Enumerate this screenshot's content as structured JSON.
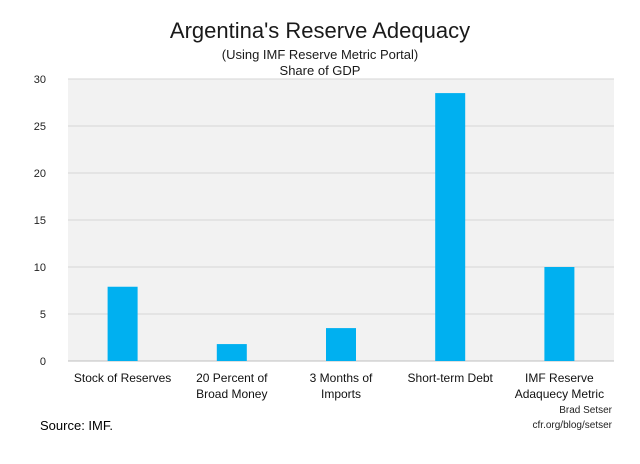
{
  "chart_data": {
    "type": "bar",
    "title": "Argentina's Reserve Adequacy",
    "subtitle": "(Using IMF Reserve Metric Portal)",
    "ylabel": "Share of GDP",
    "xlabel": "",
    "categories": [
      [
        "Stock of Reserves"
      ],
      [
        "20 Percent of",
        "Broad Money"
      ],
      [
        "3 Months of",
        "Imports"
      ],
      [
        "Short-term Debt"
      ],
      [
        "IMF Reserve",
        "Adaquecy Metric"
      ]
    ],
    "values": [
      7.9,
      1.8,
      3.5,
      28.5,
      10.0
    ],
    "ylim": [
      0,
      30
    ],
    "yticks": [
      0,
      5,
      10,
      15,
      20,
      25,
      30
    ],
    "grid": true,
    "bar_color": "#00b0f0",
    "plot_background": "#f2f2f2"
  },
  "footer": {
    "source": "Source: IMF.",
    "author": "Brad Setser",
    "site": "cfr.org/blog/setser"
  }
}
